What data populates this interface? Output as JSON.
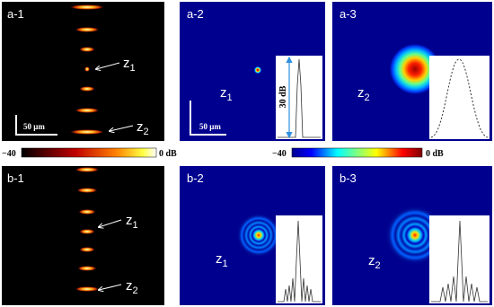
{
  "panels": [
    {
      "label": "a-1",
      "annotations": [
        {
          "base": "z",
          "sub": "1"
        },
        {
          "base": "z",
          "sub": "2"
        }
      ],
      "scale_bar": "50 μm"
    },
    {
      "label": "a-2",
      "annotations": [
        {
          "base": "z",
          "sub": "1"
        }
      ],
      "scale_bar": "50 μm",
      "inset_label": "30 dB"
    },
    {
      "label": "a-3",
      "annotations": [
        {
          "base": "z",
          "sub": "2"
        }
      ]
    },
    {
      "label": "b-1",
      "annotations": [
        {
          "base": "z",
          "sub": "1"
        },
        {
          "base": "z",
          "sub": "2"
        }
      ]
    },
    {
      "label": "b-2",
      "annotations": [
        {
          "base": "z",
          "sub": "1"
        }
      ]
    },
    {
      "label": "b-3",
      "annotations": [
        {
          "base": "z",
          "sub": "2"
        }
      ]
    }
  ],
  "colorbars": [
    {
      "min_label": "−40",
      "max_label": "0 dB"
    },
    {
      "min_label": "−40",
      "max_label": "0 dB"
    }
  ]
}
